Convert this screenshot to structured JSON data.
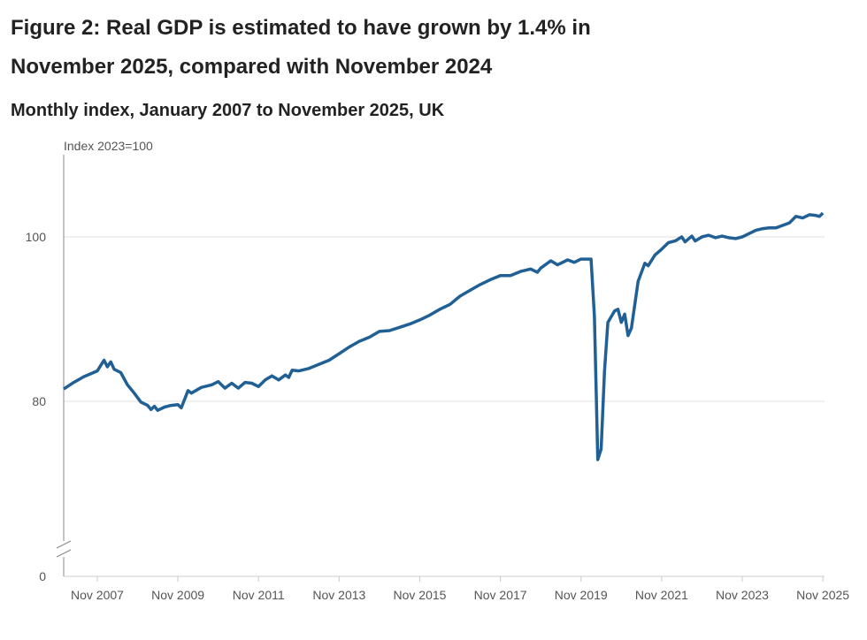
{
  "chart_data": {
    "type": "line",
    "title": "Figure 2: Real GDP is estimated to have grown by 1.4% in November 2025, compared with November 2024",
    "title_lines": [
      "Figure 2: Real GDP is estimated to have grown by 1.4% in",
      "November 2025, compared with November 2024"
    ],
    "subtitle": "Monthly index, January 2007 to November 2025, UK",
    "ylabel": "Index 2023=100",
    "xlabel": "",
    "y_ticks": [
      0,
      80,
      100
    ],
    "y_tick_labels": [
      "0",
      "80",
      "100"
    ],
    "ylim_display": [
      65,
      110
    ],
    "axis_break": true,
    "grid": "horizontal",
    "x_ticks": [
      "2007-11",
      "2009-11",
      "2011-11",
      "2013-11",
      "2015-11",
      "2017-11",
      "2019-11",
      "2021-11",
      "2023-11",
      "2025-11"
    ],
    "x_tick_labels": [
      "Nov 2007",
      "Nov 2009",
      "Nov 2011",
      "Nov 2013",
      "Nov 2015",
      "Nov 2017",
      "Nov 2019",
      "Nov 2021",
      "Nov 2023",
      "Nov 2025"
    ],
    "series": [
      {
        "name": "Real GDP",
        "color": "#206095",
        "points": [
          [
            "2007-01",
            81.5
          ],
          [
            "2007-04",
            82.3
          ],
          [
            "2007-07",
            83.0
          ],
          [
            "2007-11",
            83.7
          ],
          [
            "2008-01",
            85.0
          ],
          [
            "2008-02",
            84.2
          ],
          [
            "2008-03",
            84.8
          ],
          [
            "2008-04",
            83.9
          ],
          [
            "2008-06",
            83.5
          ],
          [
            "2008-08",
            82.0
          ],
          [
            "2008-10",
            81.0
          ],
          [
            "2008-12",
            79.9
          ],
          [
            "2009-02",
            79.5
          ],
          [
            "2009-03",
            79.0
          ],
          [
            "2009-04",
            79.4
          ],
          [
            "2009-05",
            78.9
          ],
          [
            "2009-07",
            79.3
          ],
          [
            "2009-09",
            79.5
          ],
          [
            "2009-11",
            79.6
          ],
          [
            "2009-12",
            79.2
          ],
          [
            "2010-02",
            81.3
          ],
          [
            "2010-03",
            81.0
          ],
          [
            "2010-06",
            81.7
          ],
          [
            "2010-09",
            82.0
          ],
          [
            "2010-11",
            82.4
          ],
          [
            "2011-01",
            81.6
          ],
          [
            "2011-03",
            82.2
          ],
          [
            "2011-05",
            81.6
          ],
          [
            "2011-07",
            82.3
          ],
          [
            "2011-09",
            82.2
          ],
          [
            "2011-11",
            81.8
          ],
          [
            "2012-01",
            82.6
          ],
          [
            "2012-03",
            83.1
          ],
          [
            "2012-05",
            82.6
          ],
          [
            "2012-07",
            83.2
          ],
          [
            "2012-08",
            82.9
          ],
          [
            "2012-09",
            83.8
          ],
          [
            "2012-11",
            83.7
          ],
          [
            "2013-02",
            84.0
          ],
          [
            "2013-05",
            84.5
          ],
          [
            "2013-08",
            85.0
          ],
          [
            "2013-11",
            85.8
          ],
          [
            "2014-02",
            86.6
          ],
          [
            "2014-05",
            87.3
          ],
          [
            "2014-08",
            87.8
          ],
          [
            "2014-11",
            88.5
          ],
          [
            "2015-02",
            88.6
          ],
          [
            "2015-05",
            89.0
          ],
          [
            "2015-08",
            89.4
          ],
          [
            "2015-11",
            89.9
          ],
          [
            "2016-02",
            90.5
          ],
          [
            "2016-05",
            91.2
          ],
          [
            "2016-08",
            91.8
          ],
          [
            "2016-11",
            92.8
          ],
          [
            "2017-02",
            93.5
          ],
          [
            "2017-05",
            94.2
          ],
          [
            "2017-08",
            94.8
          ],
          [
            "2017-11",
            95.3
          ],
          [
            "2018-02",
            95.3
          ],
          [
            "2018-05",
            95.8
          ],
          [
            "2018-08",
            96.1
          ],
          [
            "2018-10",
            95.7
          ],
          [
            "2018-11",
            96.2
          ],
          [
            "2019-02",
            97.1
          ],
          [
            "2019-04",
            96.6
          ],
          [
            "2019-07",
            97.2
          ],
          [
            "2019-09",
            96.9
          ],
          [
            "2019-11",
            97.3
          ],
          [
            "2020-02",
            97.3
          ],
          [
            "2020-03",
            90.3
          ],
          [
            "2020-04",
            72.9
          ],
          [
            "2020-05",
            74.2
          ],
          [
            "2020-06",
            83.7
          ],
          [
            "2020-07",
            89.6
          ],
          [
            "2020-09",
            91.0
          ],
          [
            "2020-10",
            91.2
          ],
          [
            "2020-11",
            89.6
          ],
          [
            "2020-12",
            90.6
          ],
          [
            "2021-01",
            88.0
          ],
          [
            "2021-02",
            88.9
          ],
          [
            "2021-04",
            94.6
          ],
          [
            "2021-06",
            96.8
          ],
          [
            "2021-07",
            96.5
          ],
          [
            "2021-09",
            97.8
          ],
          [
            "2021-11",
            98.5
          ],
          [
            "2022-01",
            99.3
          ],
          [
            "2022-03",
            99.5
          ],
          [
            "2022-05",
            100.0
          ],
          [
            "2022-06",
            99.4
          ],
          [
            "2022-08",
            100.1
          ],
          [
            "2022-09",
            99.5
          ],
          [
            "2022-11",
            100.0
          ],
          [
            "2023-01",
            100.2
          ],
          [
            "2023-03",
            99.9
          ],
          [
            "2023-05",
            100.1
          ],
          [
            "2023-07",
            99.9
          ],
          [
            "2023-09",
            99.8
          ],
          [
            "2023-11",
            100.0
          ],
          [
            "2024-01",
            100.4
          ],
          [
            "2024-03",
            100.8
          ],
          [
            "2024-05",
            101.0
          ],
          [
            "2024-07",
            101.1
          ],
          [
            "2024-09",
            101.1
          ],
          [
            "2024-11",
            101.4
          ],
          [
            "2025-01",
            101.7
          ],
          [
            "2025-03",
            102.5
          ],
          [
            "2025-05",
            102.3
          ],
          [
            "2025-07",
            102.7
          ],
          [
            "2025-09",
            102.6
          ],
          [
            "2025-10",
            102.5
          ],
          [
            "2025-11",
            102.9
          ]
        ]
      }
    ]
  }
}
